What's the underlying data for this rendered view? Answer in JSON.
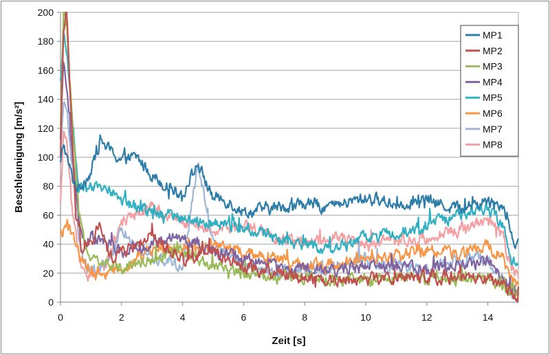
{
  "chart_data": {
    "type": "line",
    "title": "",
    "xlabel": "Zeit  [s]",
    "ylabel": "Beschleunigung [m/s²]",
    "xlim": [
      0,
      15
    ],
    "ylim": [
      0,
      200
    ],
    "xticks": [
      "0",
      "2",
      "4",
      "6",
      "8",
      "10",
      "12",
      "14"
    ],
    "yticks": [
      "0",
      "20",
      "40",
      "60",
      "80",
      "100",
      "120",
      "140",
      "160",
      "180",
      "200"
    ],
    "grid": "horizontal",
    "legend_position": "top-right",
    "series": [
      {
        "name": "MP1",
        "color": "#2e7ca8",
        "x": [
          0,
          0.1,
          0.2,
          0.4,
          0.6,
          0.8,
          1.0,
          1.3,
          1.6,
          2.0,
          2.5,
          3.0,
          3.5,
          4.0,
          4.5,
          5.0,
          5.5,
          6.0,
          7.0,
          8.0,
          9.0,
          10.0,
          11.0,
          12.0,
          13.0,
          14.0,
          14.5,
          14.8,
          15.0
        ],
        "y": [
          95,
          110,
          100,
          85,
          78,
          85,
          90,
          112,
          105,
          98,
          100,
          88,
          80,
          75,
          95,
          72,
          70,
          62,
          65,
          68,
          66,
          72,
          68,
          70,
          65,
          70,
          68,
          45,
          40
        ]
      },
      {
        "name": "MP2",
        "color": "#c0504d",
        "x": [
          0,
          0.1,
          0.2,
          0.3,
          0.5,
          0.7,
          1.0,
          1.3,
          1.6,
          2.0,
          3.0,
          4.0,
          5.0,
          6.0,
          7.0,
          8.0,
          9.0,
          10.0,
          11.0,
          12.0,
          13.0,
          14.0,
          14.7,
          15.0
        ],
        "y": [
          100,
          190,
          200,
          150,
          60,
          35,
          40,
          55,
          30,
          35,
          45,
          30,
          35,
          25,
          20,
          18,
          15,
          16,
          17,
          18,
          17,
          15,
          8,
          5
        ]
      },
      {
        "name": "MP3",
        "color": "#9bbb59",
        "x": [
          0,
          0.1,
          0.2,
          0.4,
          0.6,
          0.8,
          1.0,
          1.5,
          2.0,
          3.0,
          4.0,
          5.0,
          6.0,
          7.0,
          8.0,
          9.0,
          10.0,
          11.0,
          12.0,
          13.0,
          14.0,
          14.7,
          15.0
        ],
        "y": [
          120,
          200,
          190,
          120,
          60,
          40,
          30,
          25,
          25,
          30,
          35,
          25,
          20,
          18,
          16,
          15,
          15,
          16,
          17,
          16,
          15,
          8,
          5
        ]
      },
      {
        "name": "MP4",
        "color": "#8064a2",
        "x": [
          0,
          0.1,
          0.2,
          0.4,
          0.6,
          0.8,
          1.0,
          1.5,
          2.0,
          3.0,
          4.0,
          5.0,
          6.0,
          7.0,
          8.0,
          9.0,
          10.0,
          11.0,
          12.0,
          13.0,
          14.0,
          14.7,
          15.0
        ],
        "y": [
          110,
          165,
          150,
          100,
          55,
          40,
          45,
          40,
          35,
          40,
          45,
          35,
          30,
          25,
          22,
          22,
          25,
          24,
          22,
          25,
          28,
          10,
          6
        ]
      },
      {
        "name": "MP5",
        "color": "#31b0c2",
        "x": [
          0,
          0.1,
          0.2,
          0.4,
          0.6,
          0.8,
          1.0,
          1.5,
          2.0,
          2.5,
          3.0,
          4.0,
          5.0,
          6.0,
          7.0,
          8.0,
          9.0,
          10.0,
          11.0,
          12.0,
          13.0,
          14.0,
          14.5,
          14.8,
          15.0
        ],
        "y": [
          150,
          185,
          175,
          120,
          80,
          75,
          78,
          80,
          70,
          65,
          62,
          58,
          55,
          52,
          45,
          40,
          35,
          45,
          48,
          52,
          60,
          65,
          55,
          28,
          25
        ]
      },
      {
        "name": "MP6",
        "color": "#f79646",
        "x": [
          0,
          0.1,
          0.3,
          0.5,
          0.7,
          1.0,
          1.5,
          2.0,
          3.0,
          4.0,
          5.0,
          6.0,
          7.0,
          8.0,
          9.0,
          10.0,
          11.0,
          12.0,
          13.0,
          14.0,
          14.5,
          14.8,
          15.0
        ],
        "y": [
          45,
          48,
          52,
          40,
          30,
          22,
          20,
          25,
          35,
          38,
          40,
          35,
          30,
          25,
          25,
          30,
          32,
          35,
          34,
          38,
          30,
          15,
          10
        ]
      },
      {
        "name": "MP7",
        "color": "#9db6d6",
        "x": [
          0,
          0.1,
          0.2,
          0.4,
          0.6,
          0.8,
          1.0,
          1.5,
          2.0,
          3.0,
          4.0,
          4.5,
          5.0,
          6.0,
          7.0,
          8.0,
          9.0,
          10.0,
          11.0,
          12.0,
          13.0,
          14.0,
          14.7,
          15.0
        ],
        "y": [
          100,
          140,
          130,
          90,
          45,
          25,
          20,
          25,
          50,
          30,
          25,
          95,
          40,
          25,
          20,
          22,
          25,
          30,
          25,
          22,
          28,
          30,
          8,
          5
        ]
      },
      {
        "name": "MP8",
        "color": "#f2a0a3",
        "x": [
          0,
          0.1,
          0.2,
          0.4,
          0.6,
          0.8,
          1.0,
          1.5,
          2.0,
          3.0,
          4.0,
          5.0,
          6.0,
          7.0,
          8.0,
          9.0,
          10.0,
          11.0,
          12.0,
          13.0,
          14.0,
          14.5,
          14.8,
          15.0
        ],
        "y": [
          65,
          115,
          110,
          60,
          30,
          20,
          18,
          25,
          55,
          65,
          55,
          50,
          55,
          45,
          40,
          45,
          40,
          42,
          45,
          50,
          55,
          45,
          20,
          18
        ]
      }
    ]
  }
}
